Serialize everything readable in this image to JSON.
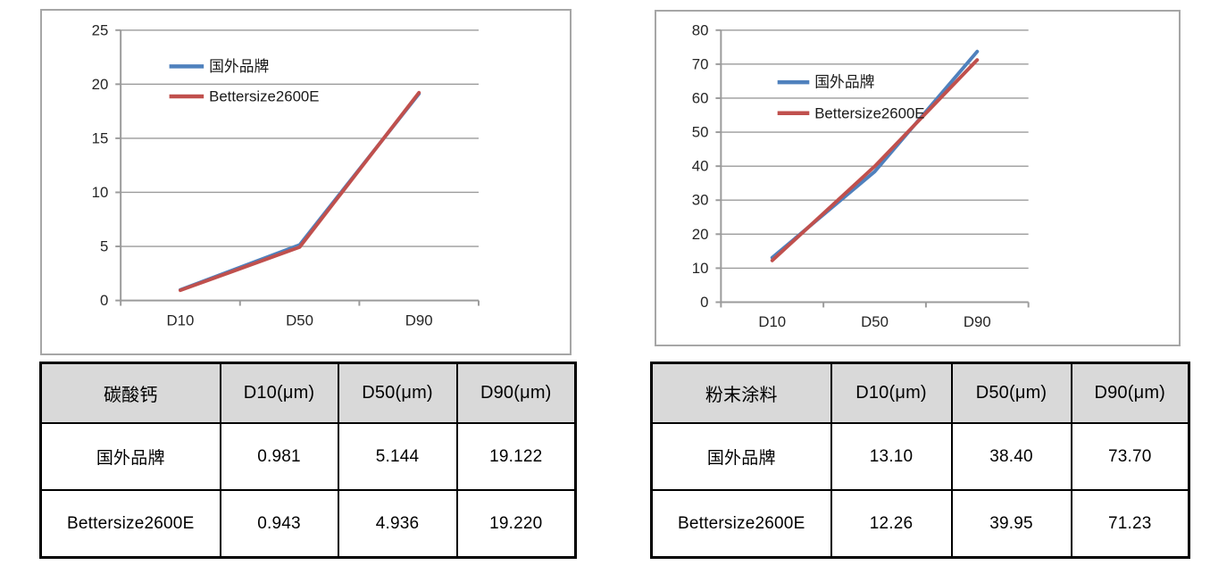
{
  "colors": {
    "background": "#ffffff",
    "chart_border": "#a6a6a6",
    "axis": "#9b9b9b",
    "gridline": "#9b9b9b",
    "axis_label": "#262626",
    "legend_text": "#1a1a1a",
    "table_border": "#000000",
    "table_header_bg": "#d9d9d9",
    "table_text": "#000000",
    "series_blue": "#4f81bd",
    "series_red": "#c0504d"
  },
  "chart_data": [
    {
      "type": "line",
      "categories": [
        "D10",
        "D50",
        "D90"
      ],
      "series": [
        {
          "id": "foreign-brand",
          "name": "国外品牌",
          "color": "#4f81bd",
          "values": [
            0.981,
            5.144,
            19.122
          ]
        },
        {
          "id": "bettersize-2600e",
          "name": "Bettersize2600E",
          "color": "#c0504d",
          "values": [
            0.943,
            4.936,
            19.22
          ]
        }
      ],
      "xlabel": "",
      "ylabel": "",
      "ylim": [
        0,
        25
      ],
      "ytick_step": 5,
      "ytick_labels": [
        "0",
        "5",
        "10",
        "15",
        "20",
        "25"
      ],
      "grid": true,
      "legend_position": "upper-left-inside"
    },
    {
      "type": "line",
      "categories": [
        "D10",
        "D50",
        "D90"
      ],
      "series": [
        {
          "id": "foreign-brand",
          "name": "国外品牌",
          "color": "#4f81bd",
          "values": [
            13.1,
            38.4,
            73.7
          ]
        },
        {
          "id": "bettersize-2600e",
          "name": "Bettersize2600E",
          "color": "#c0504d",
          "values": [
            12.26,
            39.95,
            71.23
          ]
        }
      ],
      "xlabel": "",
      "ylabel": "",
      "ylim": [
        0,
        80
      ],
      "ytick_step": 10,
      "ytick_labels": [
        "0",
        "10",
        "20",
        "30",
        "40",
        "50",
        "60",
        "70",
        "80"
      ],
      "grid": true,
      "legend_position": "upper-left-inside"
    }
  ],
  "tables": [
    {
      "id": "calcium-carbonate",
      "headers": [
        "碳酸钙",
        "D10(μm)",
        "D50(μm)",
        "D90(μm)"
      ],
      "rows": [
        [
          "国外品牌",
          "0.981",
          "5.144",
          "19.122"
        ],
        [
          "Bettersize2600E",
          "0.943",
          "4.936",
          "19.220"
        ]
      ]
    },
    {
      "id": "powder-coating",
      "headers": [
        "粉末涂料",
        "D10(μm)",
        "D50(μm)",
        "D90(μm)"
      ],
      "rows": [
        [
          "国外品牌",
          "13.10",
          "38.40",
          "73.70"
        ],
        [
          "Bettersize2600E",
          "12.26",
          "39.95",
          "71.23"
        ]
      ]
    }
  ]
}
